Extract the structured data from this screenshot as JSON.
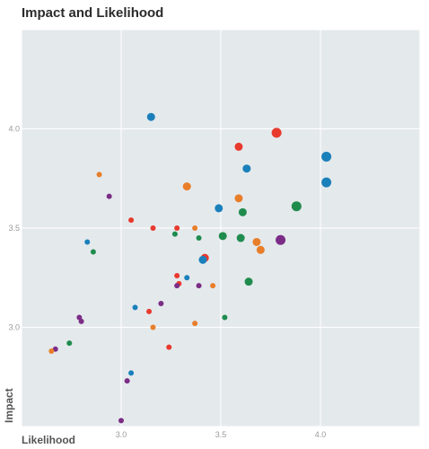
{
  "chart_data": {
    "type": "scatter",
    "title": "Impact and Likelihood",
    "xlabel": "Likelihood",
    "ylabel": "Impact",
    "xlim": [
      2.5,
      4.5
    ],
    "ylim": [
      2.5,
      4.5
    ],
    "x_ticks": [
      3.0,
      3.5,
      4.0
    ],
    "y_ticks": [
      3.0,
      3.5,
      4.0
    ],
    "grid": true,
    "colors": {
      "plot_background": "#e4e9ec",
      "grid": "#ffffff"
    },
    "points": [
      {
        "x": 3.15,
        "y": 4.06,
        "size": 2,
        "color": "#1a80bb"
      },
      {
        "x": 3.78,
        "y": 3.98,
        "size": 3,
        "color": "#e8392d"
      },
      {
        "x": 3.59,
        "y": 3.91,
        "size": 2,
        "color": "#e8392d"
      },
      {
        "x": 4.03,
        "y": 3.86,
        "size": 3,
        "color": "#1a80bb"
      },
      {
        "x": 3.63,
        "y": 3.8,
        "size": 2,
        "color": "#1a80bb"
      },
      {
        "x": 2.89,
        "y": 3.77,
        "size": 1,
        "color": "#e87e2a"
      },
      {
        "x": 4.03,
        "y": 3.73,
        "size": 3,
        "color": "#1a80bb"
      },
      {
        "x": 3.33,
        "y": 3.71,
        "size": 2,
        "color": "#e87e2a"
      },
      {
        "x": 2.94,
        "y": 3.66,
        "size": 1,
        "color": "#7b2d86"
      },
      {
        "x": 3.59,
        "y": 3.65,
        "size": 2,
        "color": "#e87e2a"
      },
      {
        "x": 3.88,
        "y": 3.61,
        "size": 3,
        "color": "#1f8c4e"
      },
      {
        "x": 3.49,
        "y": 3.6,
        "size": 2,
        "color": "#1a80bb"
      },
      {
        "x": 3.61,
        "y": 3.58,
        "size": 2,
        "color": "#1f8c4e"
      },
      {
        "x": 3.05,
        "y": 3.54,
        "size": 1,
        "color": "#e8392d"
      },
      {
        "x": 3.16,
        "y": 3.5,
        "size": 1,
        "color": "#e8392d"
      },
      {
        "x": 3.28,
        "y": 3.5,
        "size": 1,
        "color": "#e8392d"
      },
      {
        "x": 3.37,
        "y": 3.5,
        "size": 1,
        "color": "#e87e2a"
      },
      {
        "x": 3.27,
        "y": 3.47,
        "size": 1,
        "color": "#1f8c4e"
      },
      {
        "x": 3.51,
        "y": 3.46,
        "size": 2,
        "color": "#1f8c4e"
      },
      {
        "x": 3.6,
        "y": 3.45,
        "size": 2,
        "color": "#1f8c4e"
      },
      {
        "x": 3.39,
        "y": 3.45,
        "size": 1,
        "color": "#1f8c4e"
      },
      {
        "x": 3.68,
        "y": 3.43,
        "size": 2,
        "color": "#e87e2a"
      },
      {
        "x": 3.8,
        "y": 3.44,
        "size": 3,
        "color": "#7b2d86"
      },
      {
        "x": 2.83,
        "y": 3.43,
        "size": 1,
        "color": "#1a80bb"
      },
      {
        "x": 3.7,
        "y": 3.39,
        "size": 2,
        "color": "#e87e2a"
      },
      {
        "x": 2.86,
        "y": 3.38,
        "size": 1,
        "color": "#1f8c4e"
      },
      {
        "x": 3.42,
        "y": 3.35,
        "size": 2,
        "color": "#e8392d"
      },
      {
        "x": 3.41,
        "y": 3.34,
        "size": 2,
        "color": "#1a80bb"
      },
      {
        "x": 3.28,
        "y": 3.26,
        "size": 1,
        "color": "#e8392d"
      },
      {
        "x": 3.33,
        "y": 3.25,
        "size": 1,
        "color": "#1a80bb"
      },
      {
        "x": 3.64,
        "y": 3.23,
        "size": 2,
        "color": "#1f8c4e"
      },
      {
        "x": 3.29,
        "y": 3.22,
        "size": 1,
        "color": "#e8392d"
      },
      {
        "x": 3.28,
        "y": 3.21,
        "size": 1,
        "color": "#7b2d86"
      },
      {
        "x": 3.39,
        "y": 3.21,
        "size": 1,
        "color": "#7b2d86"
      },
      {
        "x": 3.46,
        "y": 3.21,
        "size": 1,
        "color": "#e87e2a"
      },
      {
        "x": 3.2,
        "y": 3.12,
        "size": 1,
        "color": "#7b2d86"
      },
      {
        "x": 3.07,
        "y": 3.1,
        "size": 1,
        "color": "#1a80bb"
      },
      {
        "x": 3.14,
        "y": 3.08,
        "size": 1,
        "color": "#e8392d"
      },
      {
        "x": 2.79,
        "y": 3.05,
        "size": 1,
        "color": "#7b2d86"
      },
      {
        "x": 2.8,
        "y": 3.03,
        "size": 1,
        "color": "#7b2d86"
      },
      {
        "x": 3.52,
        "y": 3.05,
        "size": 1,
        "color": "#1f8c4e"
      },
      {
        "x": 3.37,
        "y": 3.02,
        "size": 1,
        "color": "#e87e2a"
      },
      {
        "x": 3.16,
        "y": 3.0,
        "size": 1,
        "color": "#e87e2a"
      },
      {
        "x": 2.74,
        "y": 2.92,
        "size": 1,
        "color": "#1f8c4e"
      },
      {
        "x": 3.24,
        "y": 2.9,
        "size": 1,
        "color": "#e8392d"
      },
      {
        "x": 2.67,
        "y": 2.89,
        "size": 1,
        "color": "#7b2d86"
      },
      {
        "x": 2.65,
        "y": 2.88,
        "size": 1,
        "color": "#e87e2a"
      },
      {
        "x": 3.05,
        "y": 2.77,
        "size": 1,
        "color": "#1a80bb"
      },
      {
        "x": 3.03,
        "y": 2.73,
        "size": 1,
        "color": "#7b2d86"
      },
      {
        "x": 3.0,
        "y": 2.53,
        "size": 1,
        "color": "#7b2d86"
      }
    ]
  }
}
